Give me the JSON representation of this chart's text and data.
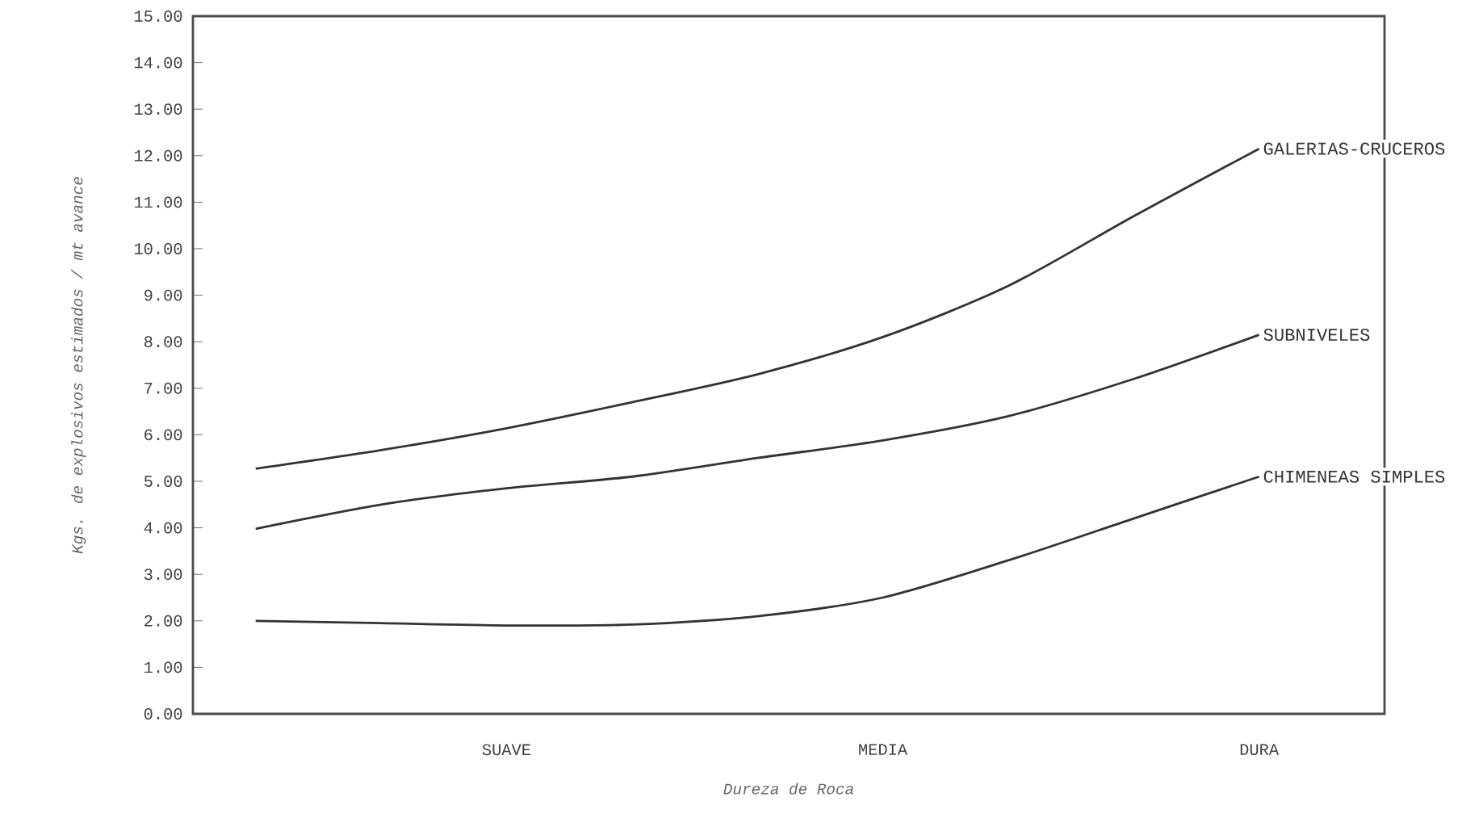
{
  "chart_data": {
    "type": "line",
    "xlabel": "Dureza de Roca",
    "ylabel": "Kgs. de explosivos estimados / mt avance",
    "categories": [
      null,
      null,
      "SUAVE",
      null,
      null,
      "MEDIA",
      null,
      null,
      "DURA"
    ],
    "ylim": [
      0,
      15
    ],
    "yticks": [
      {
        "value": 0,
        "label": "0.00"
      },
      {
        "value": 1,
        "label": "1.00"
      },
      {
        "value": 2,
        "label": "2.00"
      },
      {
        "value": 3,
        "label": "3.00"
      },
      {
        "value": 4,
        "label": "4.00"
      },
      {
        "value": 5,
        "label": "5.00"
      },
      {
        "value": 6,
        "label": "6.00"
      },
      {
        "value": 7,
        "label": "7.00"
      },
      {
        "value": 8,
        "label": "8.00"
      },
      {
        "value": 9,
        "label": "9.00"
      },
      {
        "value": 10,
        "label": "10.00"
      },
      {
        "value": 11,
        "label": "11.00"
      },
      {
        "value": 12,
        "label": "12.00"
      },
      {
        "value": 13,
        "label": "13.00"
      },
      {
        "value": 14,
        "label": "14.00"
      },
      {
        "value": 15,
        "label": "15.00"
      }
    ],
    "marker": "none",
    "line_style": "solid",
    "series": [
      {
        "name": "GALERIAS-CRUCEROS",
        "color": "#333333",
        "values": [
          5.27,
          5.67,
          6.14,
          6.7,
          7.3,
          8.1,
          9.2,
          10.7,
          12.15
        ]
      },
      {
        "name": "SUBNIVELES",
        "color": "#333333",
        "values": [
          3.98,
          4.5,
          4.85,
          5.1,
          5.5,
          5.88,
          6.4,
          7.2,
          8.15
        ]
      },
      {
        "name": "CHIMENEAS SIMPLES",
        "color": "#333333",
        "values": [
          2.0,
          1.95,
          1.9,
          1.92,
          2.1,
          2.5,
          3.3,
          4.2,
          5.1
        ]
      }
    ]
  }
}
